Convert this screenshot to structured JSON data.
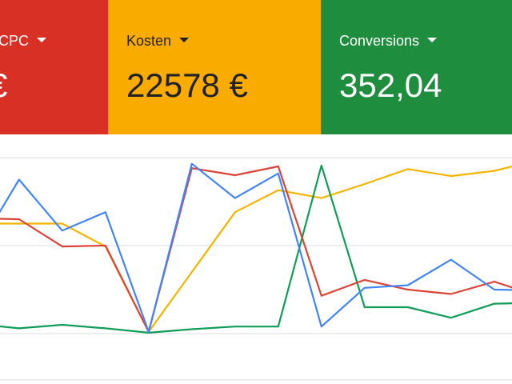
{
  "cards": [
    {
      "label": "CPC",
      "value": "€",
      "color": "#d93025",
      "text_color": "#ffffff"
    },
    {
      "label": "Kosten",
      "value": "22578 €",
      "color": "#f9ab00",
      "text_color": "#202124"
    },
    {
      "label": "Conversions",
      "value": "352,04",
      "color": "#1e8e3e",
      "text_color": "#ffffff"
    }
  ],
  "chart_data": {
    "type": "line",
    "x": [
      0,
      1,
      2,
      3,
      4,
      5,
      6,
      7,
      8,
      9,
      10,
      11,
      12,
      13
    ],
    "xlim": [
      0.56,
      12.41
    ],
    "ylim": [
      0.5,
      3.2
    ],
    "yticks": [
      1,
      2,
      3
    ],
    "grid": true,
    "series": [
      {
        "color": "#f4b400",
        "values": [
          2.25,
          2.25,
          2.25,
          1.99,
          1.02,
          1.7,
          2.38,
          2.63,
          2.54,
          2.7,
          2.87,
          2.79,
          2.85,
          2.97
        ]
      },
      {
        "color": "#0f9d58",
        "values": [
          1.11,
          1.06,
          1.1,
          1.06,
          1.01,
          1.05,
          1.08,
          1.08,
          2.91,
          1.3,
          1.3,
          1.18,
          1.34,
          1.35
        ]
      },
      {
        "color": "#db4437",
        "values": [
          2.31,
          2.3,
          1.99,
          2.0,
          1.02,
          2.88,
          2.8,
          2.9,
          1.43,
          1.61,
          1.5,
          1.45,
          1.59,
          1.43
        ]
      },
      {
        "color": "#4285f4",
        "values": [
          1.93,
          2.75,
          2.17,
          2.38,
          1.02,
          2.93,
          2.54,
          2.82,
          1.08,
          1.52,
          1.55,
          1.84,
          1.5,
          1.49
        ]
      }
    ]
  }
}
